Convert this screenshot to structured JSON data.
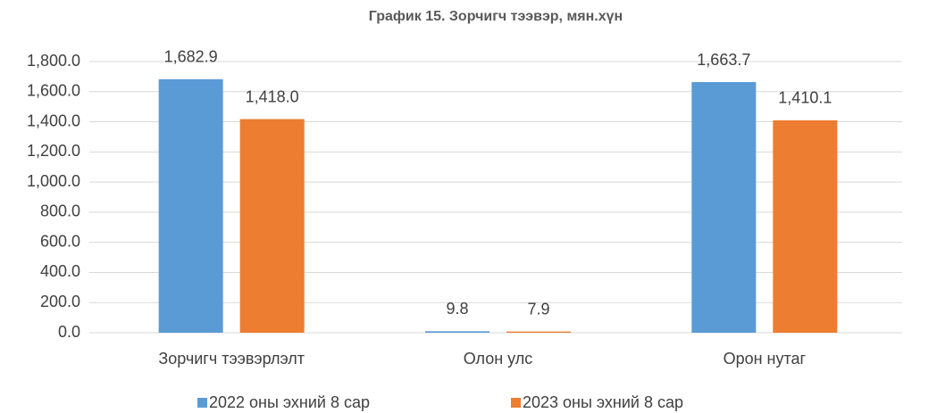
{
  "chart_data": {
    "type": "bar",
    "title": "График 15. Зорчигч тээвэр, мян.хүн",
    "categories": [
      "Зорчигч тээвэрлэлт",
      "Олон улс",
      "Орон нутаг"
    ],
    "series": [
      {
        "name": "2022 оны эхний 8 сар",
        "color": "#5b9bd5",
        "values": [
          1682.9,
          9.8,
          1663.7
        ],
        "value_labels": [
          "1,682.9",
          "9.8",
          "1,663.7"
        ]
      },
      {
        "name": "2023 оны эхний 8 сар",
        "color": "#ed7d31",
        "values": [
          1418.0,
          7.9,
          1410.1
        ],
        "value_labels": [
          "1,418.0",
          "7.9",
          "1,410.1"
        ]
      }
    ],
    "ylim": [
      0,
      1800
    ],
    "yticks": [
      {
        "value": 0,
        "label": "0.0"
      },
      {
        "value": 200,
        "label": "200.0"
      },
      {
        "value": 400,
        "label": "400.0"
      },
      {
        "value": 600,
        "label": "600.0"
      },
      {
        "value": 800,
        "label": "800.0"
      },
      {
        "value": 1000,
        "label": "1,000.0"
      },
      {
        "value": 1200,
        "label": "1,200.0"
      },
      {
        "value": 1400,
        "label": "1,400.0"
      },
      {
        "value": 1600,
        "label": "1,600.0"
      },
      {
        "value": 1800,
        "label": "1,800.0"
      }
    ],
    "grid": true
  }
}
